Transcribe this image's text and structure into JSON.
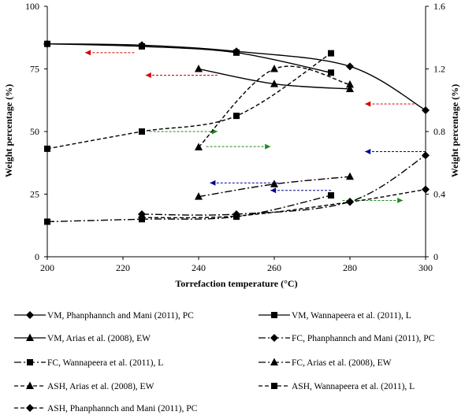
{
  "chart_data": {
    "type": "line",
    "title": "",
    "xlabel": "Torrefaction temperature (°C)",
    "ylabel": "Weight percentage (%)",
    "y2label": "Weight percentage (%)",
    "xlim": [
      200,
      300
    ],
    "ylim": [
      0,
      100
    ],
    "y2lim": [
      0,
      1.6
    ],
    "xticks": [
      "200",
      "220",
      "240",
      "260",
      "280",
      "300"
    ],
    "yticks": [
      "0",
      "25",
      "50",
      "75",
      "100"
    ],
    "y2ticks": [
      "0",
      "0.4",
      "0.8",
      "1.2",
      "1.6"
    ],
    "grid": false,
    "legend_position": "bottom",
    "series": [
      {
        "name": "VM, Phanphannch and Mani (2011), PC",
        "axis": "left",
        "dash": "solid",
        "marker": "diamond",
        "x": [
          200,
          225,
          250,
          280,
          300
        ],
        "y": [
          85,
          84.5,
          82,
          76,
          58.5
        ]
      },
      {
        "name": "VM, Wannapeera et al. (2011), L",
        "axis": "left",
        "dash": "solid",
        "marker": "square",
        "x": [
          200,
          225,
          250,
          275
        ],
        "y": [
          85,
          84,
          81.5,
          73.5
        ]
      },
      {
        "name": "VM, Arias et al. (2008), EW",
        "axis": "left",
        "dash": "solid",
        "marker": "triangle",
        "x": [
          240,
          260,
          280
        ],
        "y": [
          75,
          69,
          67
        ]
      },
      {
        "name": "FC, Phanphannch and Mani (2011), PC",
        "axis": "left",
        "dash": "dashdot",
        "marker": "diamond",
        "x": [
          225,
          250,
          280,
          300
        ],
        "y": [
          17,
          17,
          22,
          40.5
        ]
      },
      {
        "name": "FC, Wannapeera et al. (2011), L",
        "axis": "left",
        "dash": "dashdot",
        "marker": "square",
        "x": [
          200,
          225,
          250,
          275
        ],
        "y": [
          14,
          15,
          16,
          24.5
        ]
      },
      {
        "name": "FC, Arias et al. (2008), EW",
        "axis": "left",
        "dash": "dashdot",
        "marker": "triangle",
        "x": [
          240,
          260,
          280
        ],
        "y": [
          24,
          29,
          32
        ]
      },
      {
        "name": "ASH, Arias et al. (2008), EW",
        "axis": "right",
        "dash": "dashed",
        "marker": "triangle",
        "x": [
          240,
          260,
          280
        ],
        "y": [
          0.7,
          1.2,
          1.1
        ]
      },
      {
        "name": "ASH, Wannapeera et al. (2011), L",
        "axis": "right",
        "dash": "dashed",
        "marker": "square",
        "x": [
          200,
          225,
          250,
          275
        ],
        "y": [
          0.69,
          0.8,
          0.9,
          1.3
        ]
      },
      {
        "name": "ASH, Phanphannch and Mani (2011), PC",
        "axis": "right",
        "dash": "dashed",
        "marker": "diamond",
        "x": [
          225,
          250,
          280,
          300
        ],
        "y": [
          0.25,
          0.26,
          0.35,
          0.43
        ]
      }
    ],
    "annotations": [
      {
        "kind": "arrow",
        "color": "#d60000",
        "x_from": 223,
        "x_to": 210,
        "y": 81.5
      },
      {
        "kind": "arrow",
        "color": "#d60000",
        "x_from": 245,
        "x_to": 226,
        "y": 72.5
      },
      {
        "kind": "arrow",
        "color": "#d60000",
        "x_from": 297,
        "x_to": 284,
        "y": 61
      },
      {
        "kind": "arrow",
        "color": "#1e8a1e",
        "x_from": 227,
        "x_to": 245,
        "y": 50
      },
      {
        "kind": "arrow",
        "color": "#1e8a1e",
        "x_from": 242,
        "x_to": 259,
        "y": 44
      },
      {
        "kind": "arrow",
        "color": "#1e8a1e",
        "x_from": 278,
        "x_to": 294,
        "y": 22.5
      },
      {
        "kind": "arrow",
        "color": "#00008b",
        "x_from": 300,
        "x_to": 284,
        "y": 42
      },
      {
        "kind": "arrow",
        "color": "#00008b",
        "x_from": 261,
        "x_to": 243,
        "y": 29.5
      },
      {
        "kind": "arrow",
        "color": "#00008b",
        "x_from": 275,
        "x_to": 259,
        "y": 26.5
      }
    ]
  }
}
